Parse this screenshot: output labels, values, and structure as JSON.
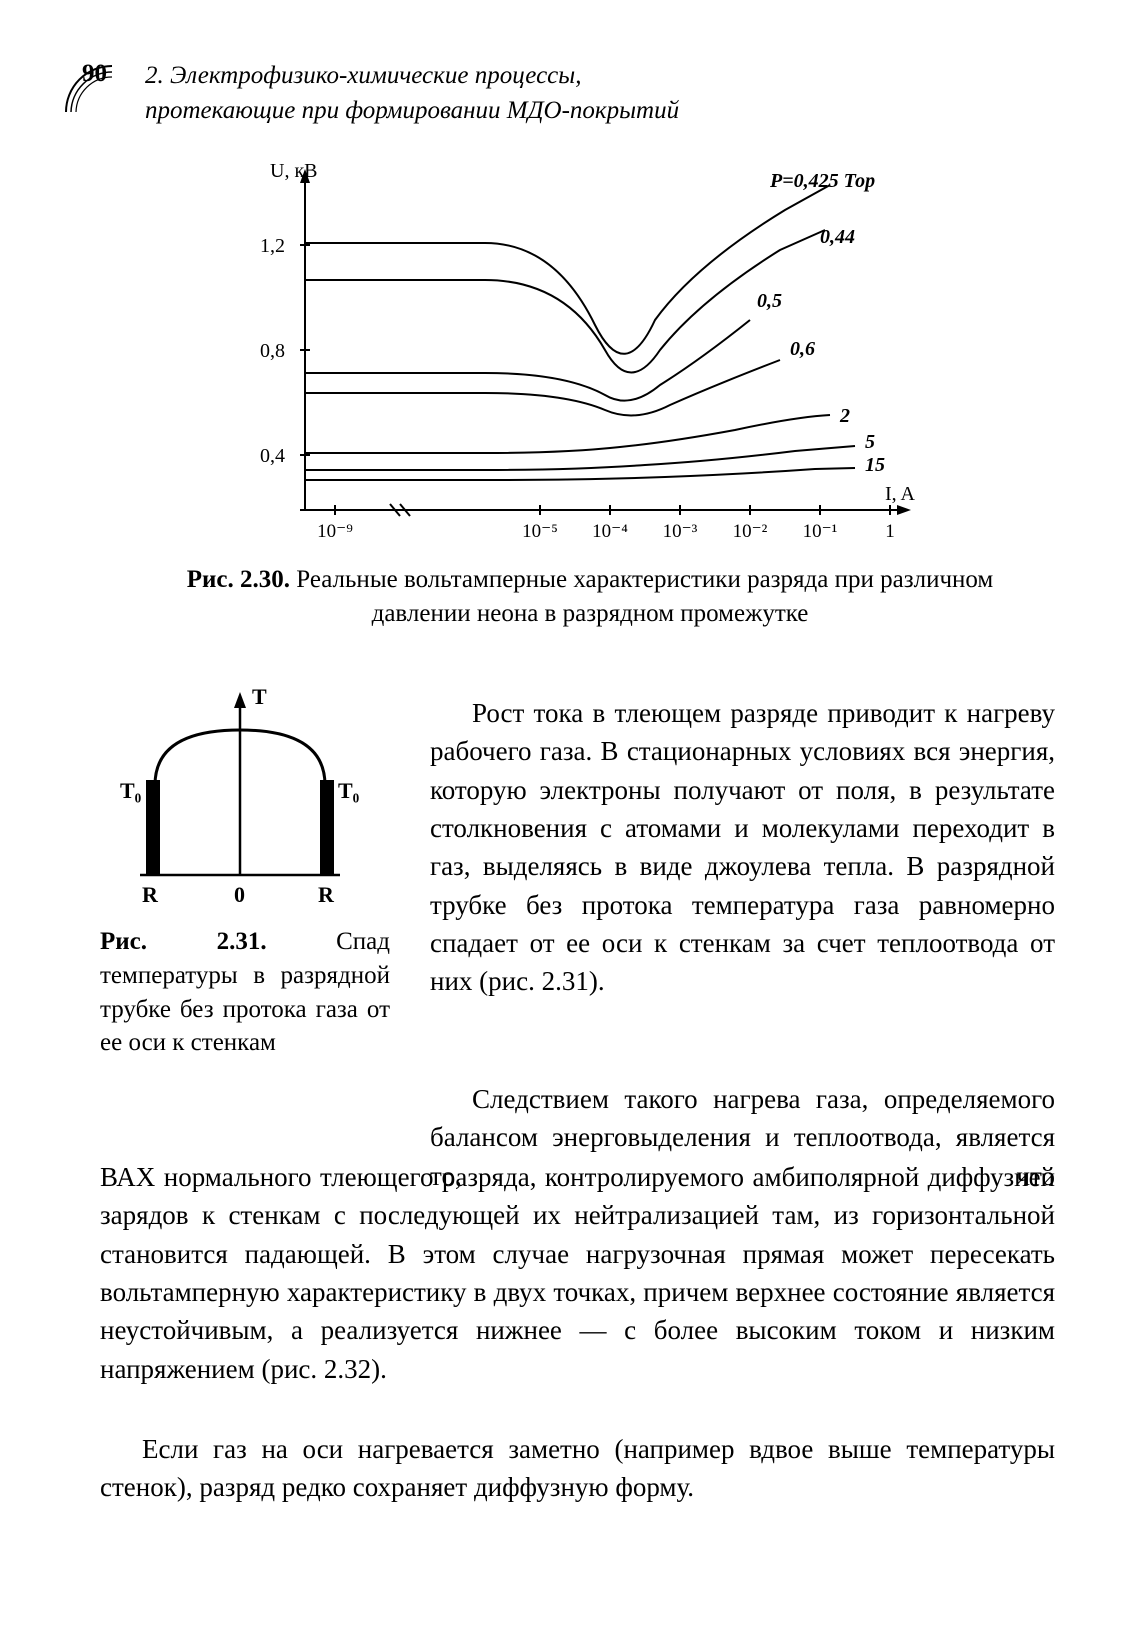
{
  "page_number": "90",
  "chapter_heading": "2. Электрофизико-химические процессы,\nпротекающие при формировании МДО-покрытий",
  "fig230": {
    "y_label": "U, кВ",
    "x_label": "I, A",
    "y_ticks": [
      "0,4",
      "0,8",
      "1,2"
    ],
    "y_tick_vals": [
      0.4,
      0.8,
      1.2
    ],
    "x_tick_labels": [
      "10⁻⁹",
      "10⁻⁵",
      "10⁻⁴",
      "10⁻³",
      "10⁻²",
      "10⁻¹",
      "1"
    ],
    "x_tick_pos": [
      0,
      3,
      4,
      5,
      6,
      7,
      8
    ],
    "curve_labels": [
      "P=0,425 Тор",
      "0,44",
      "0,5",
      "0,6",
      "2",
      "5",
      "15"
    ],
    "curve_label_pos": [
      {
        "x": 610,
        "y": 32
      },
      {
        "x": 600,
        "y": 82
      },
      {
        "x": 535,
        "y": 150
      },
      {
        "x": 565,
        "y": 200
      },
      {
        "x": 610,
        "y": 265
      },
      {
        "x": 635,
        "y": 290
      },
      {
        "x": 635,
        "y": 312
      }
    ],
    "curves": [
      "M 80 88 L 260 88 Q 330 88 370 170 Q 400 230 430 165 Q 470 110 560 55 L 605 30",
      "M 80 125 L 260 125 Q 340 125 380 195 Q 405 240 435 195 Q 475 145 555 95 L 600 75",
      "M 80 218 L 260 218 Q 340 218 380 240 Q 405 255 435 230 Q 475 205 525 165",
      "M 80 238 L 260 238 Q 340 238 380 255 Q 410 268 445 250 Q 490 230 555 205",
      "M 80 298 L 260 298 Q 340 298 395 292 Q 445 287 510 275 Q 570 262 605 260",
      "M 80 315 L 260 315 Q 350 315 420 310 Q 490 306 570 296 L 630 291",
      "M 80 325 L 260 325 Q 360 325 440 322 Q 520 319 590 314 L 630 313"
    ],
    "axis_color": "#000000",
    "curve_color": "#000000",
    "curve_width": 2,
    "label_fontsize": 18,
    "tick_fontsize": 18
  },
  "caption230_label": "Рис. 2.30.",
  "caption230_text": "Реальные вольтамперные характеристики разряда при различном давлении неона в разрядном промежутке",
  "fig231": {
    "labels": {
      "T": "T",
      "T0_left": "T₀",
      "T0_right": "T₀",
      "R_left": "R",
      "R_right": "R",
      "zero": "0"
    },
    "stroke": "#000000",
    "wall_width": 14
  },
  "caption231_label": "Рис. 2.31.",
  "caption231_text": "Спад температуры в разрядной трубке без протока газа от ее оси к стенкам",
  "para1": "Рост тока в тлеющем разряде приводит к нагреву рабочего газа. В стационарных условиях вся энергия, которую электроны получают от поля, в результате столкновения с атомами и молекулами переходит в газ, выделяясь в виде джоулева тепла. В разрядной трубке без протока температура газа равномерно спадает от ее оси к стенкам за счет теплоотвода от них (рис. 2.31).",
  "para2a": "Следствием такого нагрева газа, определяемого балансом энерговыделения и теплоотвода, является то, что",
  "para2b": "ВАХ нормального тлеющего разряда, контролируемого амбиполярной диффузией зарядов к стенкам с последующей их нейтрализацией там, из горизонтальной становится падающей. В этом случае нагрузочная прямая может пересекать вольтамперную характеристику в двух точках, причем верхнее состояние является неустойчивым, а реализуется нижнее — с более высоким током и низким напряжением (рис. 2.32).",
  "para3": "Если газ на оси нагревается заметно (например вдвое выше температуры стенок), разряд редко сохраняет диффузную форму."
}
